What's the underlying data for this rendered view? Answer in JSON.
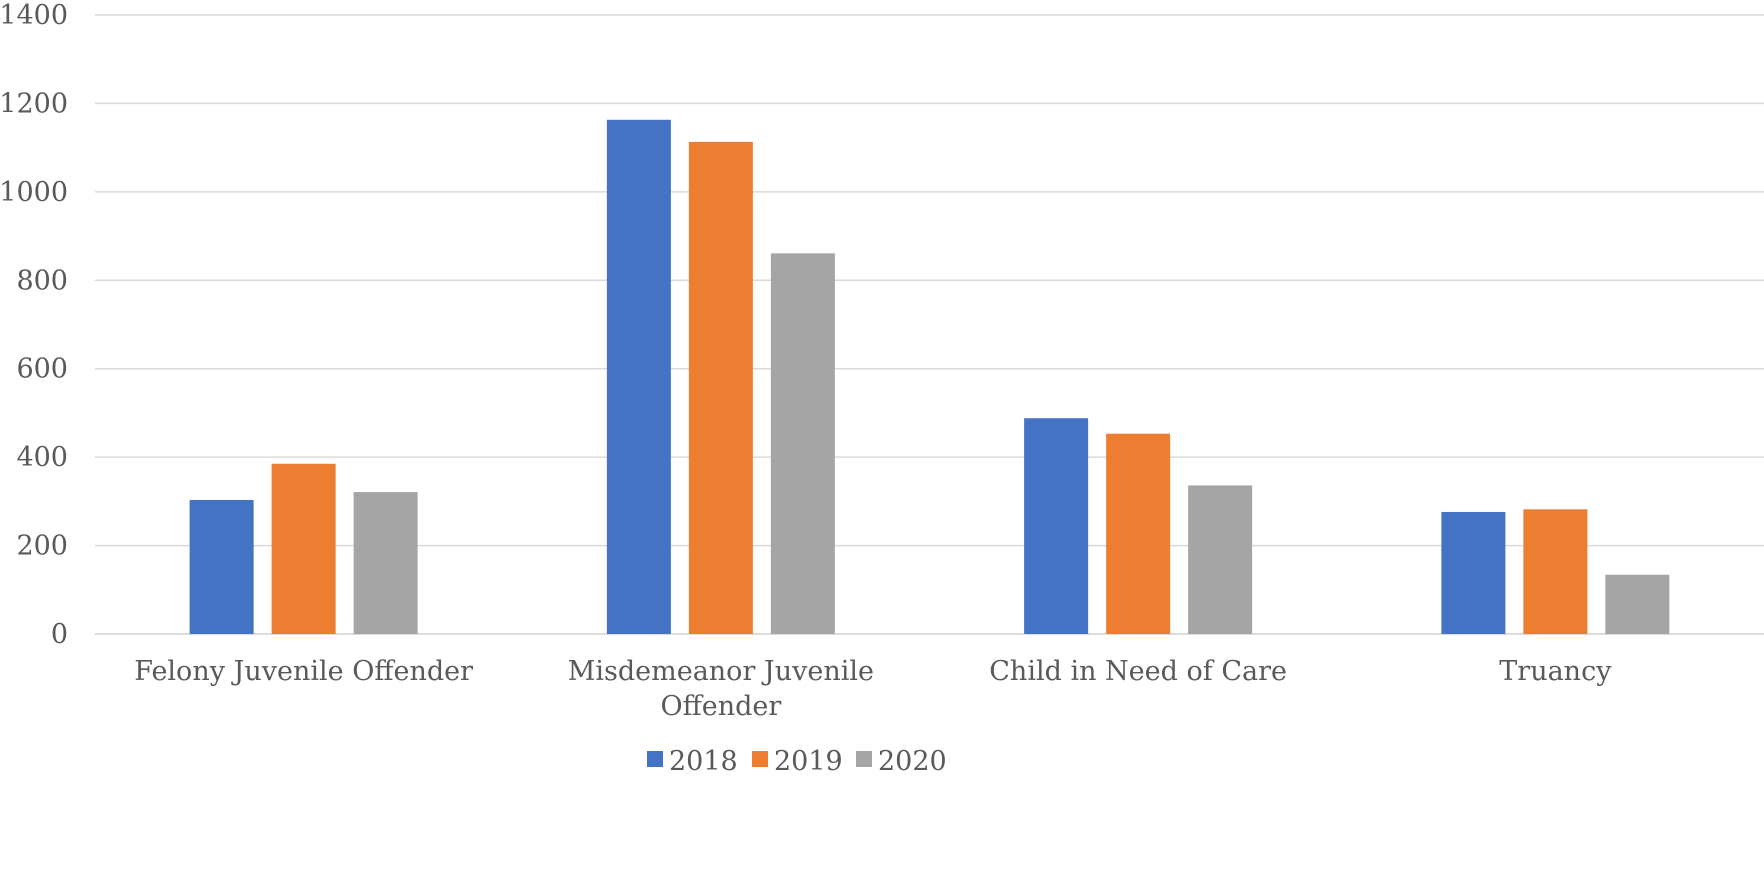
{
  "chart_data": {
    "type": "bar",
    "title": "",
    "xlabel": "",
    "ylabel": "",
    "ylim": [
      0,
      1400
    ],
    "yticks": [
      "0",
      "200",
      "400",
      "600",
      "800",
      "1000",
      "1200",
      "1400"
    ],
    "grid": true,
    "legend_position": "bottom",
    "categories": [
      [
        "Felony Juvenile Offender"
      ],
      [
        "Misdemeanor Juvenile",
        "Offender"
      ],
      [
        "Child in Need of Care"
      ],
      [
        "Truancy"
      ]
    ],
    "series": [
      {
        "name": "2018",
        "color": "#4472C4",
        "values": [
          303,
          1163,
          488,
          276
        ]
      },
      {
        "name": "2019",
        "color": "#ED7D31",
        "values": [
          385,
          1113,
          453,
          282
        ]
      },
      {
        "name": "2020",
        "color": "#A5A5A5",
        "values": [
          321,
          861,
          336,
          134
        ]
      }
    ]
  }
}
